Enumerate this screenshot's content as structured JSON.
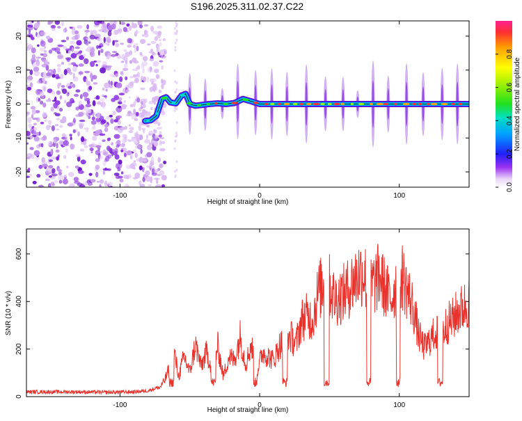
{
  "title": "S196.2025.311.02.37.C22",
  "chart_data": [
    {
      "type": "heatmap",
      "title": "S196.2025.311.02.37.C22",
      "xlabel": "Height of straight line (km)",
      "ylabel": "Frequency (Hz)",
      "xlim": [
        -167,
        150
      ],
      "ylim": [
        -24.5,
        24.5
      ],
      "xticks": [
        -100,
        0,
        100
      ],
      "xtick_labels": [
        "-100",
        "0",
        "100"
      ],
      "yticks": [
        -20,
        -10,
        0,
        10,
        20
      ],
      "ytick_labels": [
        "-20",
        "-10",
        "0",
        "10",
        "20"
      ],
      "colorbar": {
        "label": "Normalized spectral amplitude",
        "range": [
          0.0,
          1.0
        ],
        "ticks": [
          0.0,
          0.2,
          0.4,
          0.6,
          0.8
        ],
        "tick_labels": [
          "0.0",
          "0.2",
          "0.4",
          "0.6",
          "0.8"
        ],
        "colormap": "rainbow"
      },
      "ridge": {
        "x": [
          -82,
          -78,
          -74,
          -70,
          -67,
          -64,
          -60,
          -56,
          -53,
          -50,
          -46,
          -42,
          -36,
          -30,
          -24,
          -18,
          -12,
          -6,
          0,
          150
        ],
        "y": [
          -5,
          -4.8,
          -3.5,
          1.5,
          2,
          0.5,
          0.2,
          2.5,
          3,
          0,
          -0.5,
          -0.3,
          0,
          0.2,
          0,
          0.3,
          1.5,
          0.8,
          0,
          0
        ]
      },
      "noise_region_x": [
        -167,
        -68
      ]
    },
    {
      "type": "line",
      "xlabel": "Height of straight line (km)",
      "ylabel": "SNR (10 * v/v)",
      "xlim": [
        -167,
        150
      ],
      "ylim": [
        0,
        705
      ],
      "xticks": [
        -100,
        0,
        100
      ],
      "xtick_labels": [
        "-100",
        "0",
        "100"
      ],
      "yticks": [
        0,
        200,
        400,
        600
      ],
      "ytick_labels": [
        "0",
        "200",
        "400",
        "600"
      ],
      "color": "#e8322b",
      "series": [
        {
          "name": "SNR",
          "x": [
            -167,
            -150,
            -130,
            -110,
            -90,
            -80,
            -72,
            -68,
            -64,
            -62,
            -58,
            -54,
            -50,
            -46,
            -42,
            -38,
            -34,
            -30,
            -26,
            -22,
            -18,
            -14,
            -10,
            -6,
            -2,
            2,
            6,
            10,
            14,
            18,
            22,
            26,
            30,
            34,
            38,
            42,
            46,
            50,
            54,
            58,
            62,
            66,
            70,
            74,
            78,
            82,
            86,
            90,
            94,
            98,
            102,
            106,
            110,
            114,
            118,
            122,
            126,
            130,
            134,
            138,
            142,
            146,
            150
          ],
          "values": [
            20,
            20,
            20,
            18,
            20,
            25,
            40,
            80,
            150,
            250,
            100,
            200,
            120,
            260,
            150,
            220,
            140,
            250,
            100,
            200,
            180,
            300,
            160,
            260,
            120,
            220,
            200,
            180,
            250,
            280,
            300,
            260,
            380,
            400,
            380,
            520,
            560,
            550,
            480,
            500,
            520,
            560,
            600,
            620,
            550,
            560,
            600,
            530,
            480,
            560,
            600,
            520,
            440,
            300,
            240,
            280,
            320,
            300,
            360,
            380,
            420,
            440,
            470
          ]
        }
      ]
    }
  ]
}
